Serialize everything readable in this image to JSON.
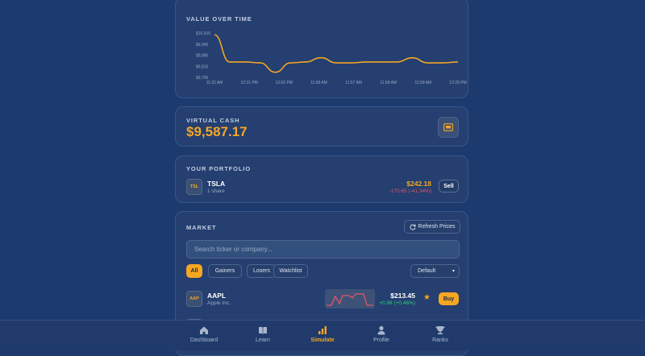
{
  "chart_section": {
    "title": "VALUE OVER TIME"
  },
  "chart_data": {
    "type": "line",
    "title": "VALUE OVER TIME",
    "y_ticks": [
      "$10,010",
      "$9,945",
      "$9,880",
      "$9,815",
      "$9,750"
    ],
    "ylim": [
      9750,
      10010
    ],
    "x_ticks": [
      "11:32 AM",
      "12:31 PM",
      "12:02 PM",
      "11:58 AM",
      "11:57 AM",
      "11:58 AM",
      "11:58 AM",
      "12:29 PM"
    ],
    "series": [
      {
        "values": [
          10000,
          9840,
          9840,
          9835,
          9780,
          9835,
          9840,
          9865,
          9835,
          9835,
          9840,
          9840,
          9840,
          9865,
          9835,
          9835,
          9840
        ]
      }
    ],
    "color": "#f5a623"
  },
  "cash": {
    "label": "VIRTUAL CASH",
    "amount": "$9,587.17",
    "icon": "wallet-icon"
  },
  "portfolio": {
    "label": "YOUR PORTFOLIO",
    "holdings": [
      {
        "badge": "TSL",
        "symbol": "TSLA",
        "shares": "1 share",
        "price": "$242.18",
        "change": "-170.65 (-41.34%)",
        "sell_label": "Sell"
      }
    ]
  },
  "market": {
    "label": "MARKET",
    "refresh_label": "Refresh Prices",
    "search_placeholder": "Search ticker or company...",
    "filters": [
      "All",
      "Gainers",
      "Losers",
      "Watchlist"
    ],
    "sort_selected": "Default",
    "stocks": [
      {
        "badge": "AAP",
        "symbol": "AAPL",
        "name": "Apple Inc.",
        "price": "$213.45",
        "change": "+0.98 (+0.46%)",
        "buy_label": "Buy"
      }
    ]
  },
  "nav": {
    "items": [
      {
        "label": "Dashboard",
        "icon": "home-icon"
      },
      {
        "label": "Learn",
        "icon": "book-icon"
      },
      {
        "label": "Simulate",
        "icon": "bar-chart-icon"
      },
      {
        "label": "Profile",
        "icon": "user-icon"
      },
      {
        "label": "Ranks",
        "icon": "trophy-icon"
      }
    ],
    "active": "Simulate"
  },
  "colors": {
    "accent": "#f5a623",
    "negative": "#e0566b",
    "positive": "#2fcf7a",
    "background": "#1c3a6e",
    "card": "#243f70"
  }
}
